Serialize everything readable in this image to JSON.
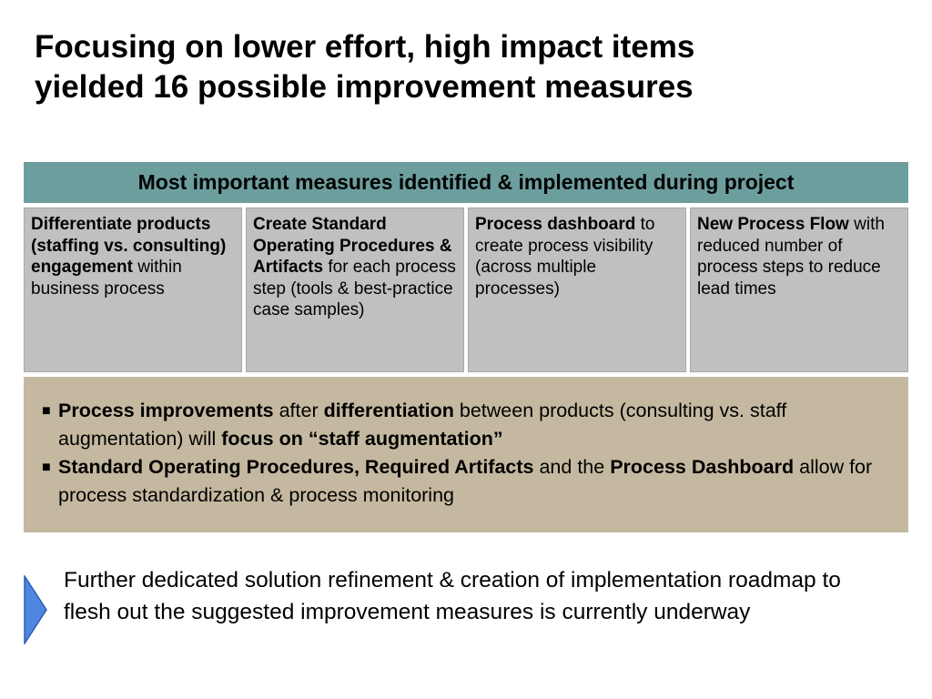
{
  "title": {
    "line1": "Focusing on lower effort, high impact items",
    "line2": "yielded 16 possible improvement measures"
  },
  "banner": {
    "text": "Most important measures identified & implemented during project"
  },
  "measures": [
    {
      "bold": "Differentiate products (staffing vs. consulting) engagement",
      "rest": " within business process"
    },
    {
      "bold": "Create Standard Operating Procedures & Artifacts",
      "rest": " for each process step (tools & best-practice case samples)"
    },
    {
      "bold": "Process dashboard",
      "rest": " to create process visibility (across multiple processes)"
    },
    {
      "bold": "New Process Flow",
      "rest": " with reduced number of process steps to reduce lead times"
    }
  ],
  "summary": {
    "bullet_mark": "■",
    "bullet1": {
      "p1": "Process improvements",
      "p2": " after ",
      "p3": "differentiation",
      "p4": " between products (consulting vs. staff augmentation) will ",
      "p5": "focus on “staff augmentation”"
    },
    "bullet2": {
      "p1": "Standard Operating Procedures, Required Artifacts",
      "p2": "  and the ",
      "p3": "Process Dashboard",
      "p4": " allow for process standardization & process monitoring"
    }
  },
  "footer": {
    "text": "Further dedicated solution refinement & creation of implementation roadmap to flesh out the suggested improvement measures is currently underway",
    "arrow_icon": "right-arrow-icon"
  },
  "colors": {
    "banner": "#6d9e9e",
    "cells": "#c0c0c0",
    "summary": "#c4b9a0",
    "arrow": "#4f86e0"
  }
}
